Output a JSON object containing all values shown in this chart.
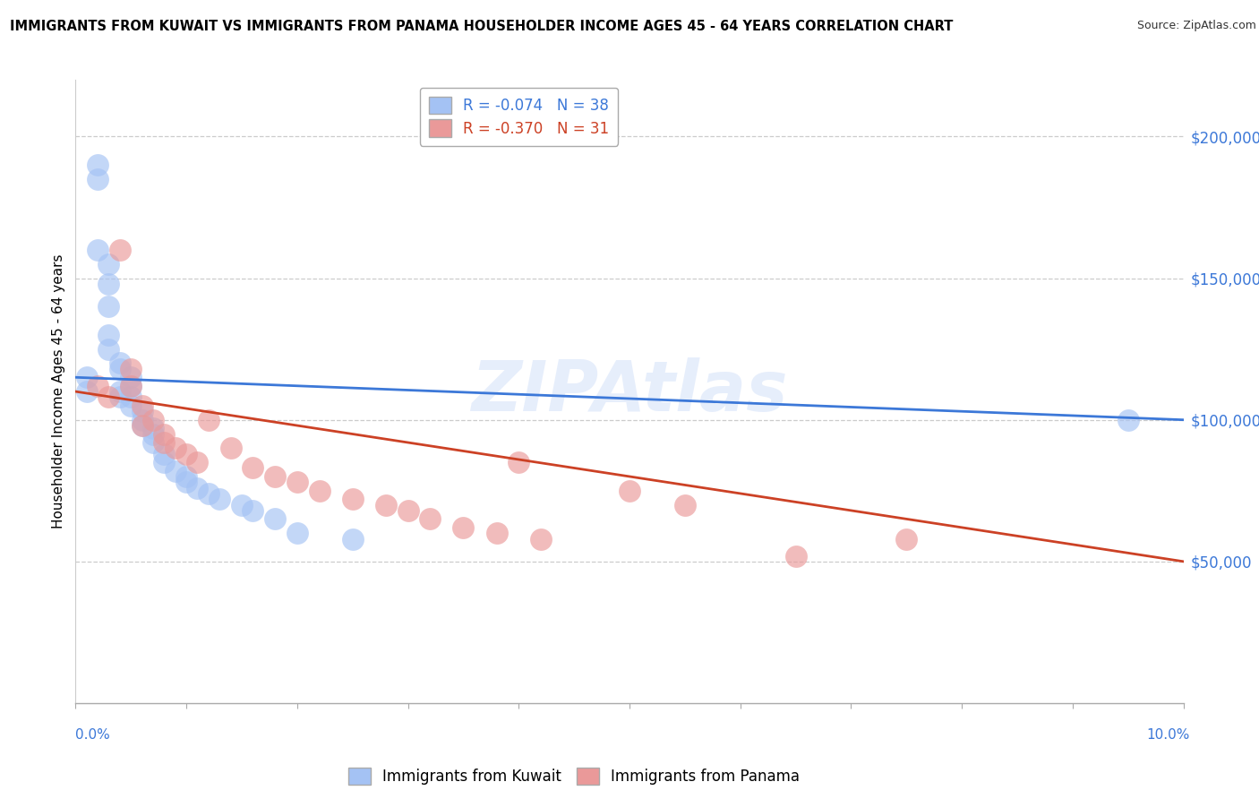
{
  "title": "IMMIGRANTS FROM KUWAIT VS IMMIGRANTS FROM PANAMA HOUSEHOLDER INCOME AGES 45 - 64 YEARS CORRELATION CHART",
  "source": "Source: ZipAtlas.com",
  "ylabel": "Householder Income Ages 45 - 64 years",
  "kuwait_R": -0.074,
  "kuwait_N": 38,
  "panama_R": -0.37,
  "panama_N": 31,
  "kuwait_color": "#a4c2f4",
  "panama_color": "#ea9999",
  "kuwait_line_color": "#3c78d8",
  "panama_line_color": "#cc4125",
  "xlim": [
    0.0,
    0.1
  ],
  "ylim": [
    0,
    220000
  ],
  "yticks": [
    50000,
    100000,
    150000,
    200000
  ],
  "ytick_labels": [
    "$50,000",
    "$100,000",
    "$150,000",
    "$200,000"
  ],
  "kuwait_x": [
    0.001,
    0.001,
    0.002,
    0.002,
    0.002,
    0.003,
    0.003,
    0.003,
    0.003,
    0.003,
    0.004,
    0.004,
    0.004,
    0.004,
    0.005,
    0.005,
    0.005,
    0.005,
    0.006,
    0.006,
    0.006,
    0.007,
    0.007,
    0.007,
    0.008,
    0.008,
    0.009,
    0.01,
    0.01,
    0.011,
    0.012,
    0.013,
    0.015,
    0.016,
    0.018,
    0.02,
    0.025,
    0.095
  ],
  "kuwait_y": [
    115000,
    110000,
    190000,
    185000,
    160000,
    155000,
    148000,
    140000,
    130000,
    125000,
    120000,
    118000,
    110000,
    108000,
    115000,
    112000,
    108000,
    105000,
    103000,
    100000,
    98000,
    97000,
    95000,
    92000,
    88000,
    85000,
    82000,
    80000,
    78000,
    76000,
    74000,
    72000,
    70000,
    68000,
    65000,
    60000,
    58000,
    100000
  ],
  "panama_x": [
    0.002,
    0.003,
    0.004,
    0.005,
    0.005,
    0.006,
    0.006,
    0.007,
    0.008,
    0.008,
    0.009,
    0.01,
    0.011,
    0.012,
    0.014,
    0.016,
    0.018,
    0.02,
    0.022,
    0.025,
    0.028,
    0.03,
    0.032,
    0.035,
    0.038,
    0.04,
    0.042,
    0.05,
    0.055,
    0.065,
    0.075
  ],
  "panama_y": [
    112000,
    108000,
    160000,
    118000,
    112000,
    105000,
    98000,
    100000,
    95000,
    92000,
    90000,
    88000,
    85000,
    100000,
    90000,
    83000,
    80000,
    78000,
    75000,
    72000,
    70000,
    68000,
    65000,
    62000,
    60000,
    85000,
    58000,
    75000,
    70000,
    52000,
    58000
  ]
}
